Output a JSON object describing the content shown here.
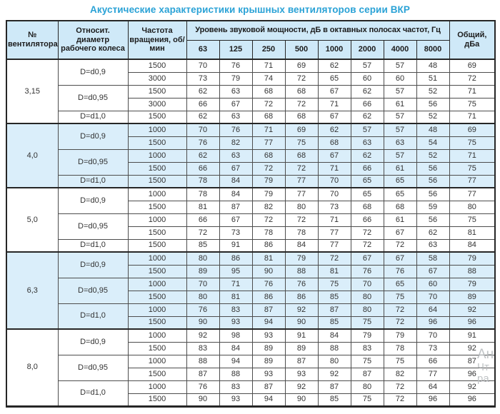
{
  "title": "Акустические характеристики крышных вентиляторов серии ВКР",
  "header": {
    "fan_no": "№ вентилятора",
    "diameter": "Относит. диаметр рабочего колеса",
    "rpm": "Частота вращения, об/мин",
    "band_label": "Уровень звуковой мощности, дБ в октавных полосах частот, Гц",
    "freq_bands": [
      "63",
      "125",
      "250",
      "500",
      "1000",
      "2000",
      "4000",
      "8000"
    ],
    "total": "Общий, дБа"
  },
  "colors": {
    "title": "#2aa2d6",
    "header_bg": "#cfe9f8",
    "band_bg": "#daeefa",
    "border": "#4d4d4d",
    "border_strong": "#262626"
  },
  "watermark": {
    "lines": [
      "Ан",
      "Чт",
      "ра"
    ]
  },
  "groups": [
    {
      "fan": "3,15",
      "shaded": false,
      "subgroups": [
        {
          "diameter": "D=d0,9",
          "rows": [
            {
              "rpm": "1500",
              "levels": [
                70,
                76,
                71,
                69,
                62,
                57,
                57,
                48
              ],
              "total": 69
            },
            {
              "rpm": "3000",
              "levels": [
                73,
                79,
                74,
                72,
                65,
                60,
                60,
                51
              ],
              "total": 72
            }
          ]
        },
        {
          "diameter": "D=d0,95",
          "rows": [
            {
              "rpm": "1500",
              "levels": [
                62,
                63,
                68,
                68,
                67,
                62,
                57,
                52
              ],
              "total": 71
            },
            {
              "rpm": "3000",
              "levels": [
                66,
                67,
                72,
                72,
                71,
                66,
                61,
                56
              ],
              "total": 75
            }
          ]
        },
        {
          "diameter": "D=d1,0",
          "rows": [
            {
              "rpm": "1500",
              "levels": [
                62,
                63,
                68,
                68,
                67,
                62,
                57,
                52
              ],
              "total": 71
            }
          ]
        }
      ]
    },
    {
      "fan": "4,0",
      "shaded": true,
      "subgroups": [
        {
          "diameter": "D=d0,9",
          "rows": [
            {
              "rpm": "1000",
              "levels": [
                70,
                76,
                71,
                69,
                62,
                57,
                57,
                48
              ],
              "total": 69
            },
            {
              "rpm": "1500",
              "levels": [
                76,
                82,
                77,
                75,
                68,
                63,
                63,
                54
              ],
              "total": 75
            }
          ]
        },
        {
          "diameter": "D=d0,95",
          "rows": [
            {
              "rpm": "1000",
              "levels": [
                62,
                63,
                68,
                68,
                67,
                62,
                57,
                52
              ],
              "total": 71
            },
            {
              "rpm": "1500",
              "levels": [
                66,
                67,
                72,
                72,
                71,
                66,
                61,
                56
              ],
              "total": 75
            }
          ]
        },
        {
          "diameter": "D=d1,0",
          "rows": [
            {
              "rpm": "1500",
              "levels": [
                78,
                84,
                79,
                77,
                70,
                65,
                65,
                56
              ],
              "total": 77
            }
          ]
        }
      ]
    },
    {
      "fan": "5,0",
      "shaded": false,
      "subgroups": [
        {
          "diameter": "D=d0,9",
          "rows": [
            {
              "rpm": "1000",
              "levels": [
                78,
                84,
                79,
                77,
                70,
                65,
                65,
                56
              ],
              "total": 77
            },
            {
              "rpm": "1500",
              "levels": [
                81,
                87,
                82,
                80,
                73,
                68,
                68,
                59
              ],
              "total": 80
            }
          ]
        },
        {
          "diameter": "D=d0,95",
          "rows": [
            {
              "rpm": "1000",
              "levels": [
                66,
                67,
                72,
                72,
                71,
                66,
                61,
                56
              ],
              "total": 75
            },
            {
              "rpm": "1500",
              "levels": [
                72,
                73,
                78,
                78,
                77,
                72,
                67,
                62
              ],
              "total": 81
            }
          ]
        },
        {
          "diameter": "D=d1,0",
          "rows": [
            {
              "rpm": "1500",
              "levels": [
                85,
                91,
                86,
                84,
                77,
                72,
                72,
                63
              ],
              "total": 84
            }
          ]
        }
      ]
    },
    {
      "fan": "6,3",
      "shaded": true,
      "subgroups": [
        {
          "diameter": "D=d0,9",
          "rows": [
            {
              "rpm": "1000",
              "levels": [
                80,
                86,
                81,
                79,
                72,
                67,
                67,
                58
              ],
              "total": 79
            },
            {
              "rpm": "1500",
              "levels": [
                89,
                95,
                90,
                88,
                81,
                76,
                76,
                67
              ],
              "total": 88
            }
          ]
        },
        {
          "diameter": "D=d0,95",
          "rows": [
            {
              "rpm": "1000",
              "levels": [
                70,
                71,
                76,
                76,
                75,
                70,
                65,
                60
              ],
              "total": 79
            },
            {
              "rpm": "1500",
              "levels": [
                80,
                81,
                86,
                86,
                85,
                80,
                75,
                70
              ],
              "total": 89
            }
          ]
        },
        {
          "diameter": "D=d1,0",
          "rows": [
            {
              "rpm": "1000",
              "levels": [
                76,
                83,
                87,
                92,
                87,
                80,
                72,
                64
              ],
              "total": 92
            },
            {
              "rpm": "1500",
              "levels": [
                90,
                93,
                94,
                90,
                85,
                75,
                72,
                96
              ],
              "total": 96
            }
          ]
        }
      ]
    },
    {
      "fan": "8,0",
      "shaded": false,
      "subgroups": [
        {
          "diameter": "D=d0,9",
          "rows": [
            {
              "rpm": "1000",
              "levels": [
                92,
                98,
                93,
                91,
                84,
                79,
                79,
                70
              ],
              "total": 91
            },
            {
              "rpm": "1500",
              "levels": [
                83,
                84,
                89,
                89,
                88,
                83,
                78,
                73
              ],
              "total": 92
            }
          ]
        },
        {
          "diameter": "D=d0,95",
          "rows": [
            {
              "rpm": "1000",
              "levels": [
                88,
                94,
                89,
                87,
                80,
                75,
                75,
                66
              ],
              "total": 87
            },
            {
              "rpm": "1500",
              "levels": [
                87,
                88,
                93,
                93,
                92,
                87,
                82,
                77
              ],
              "total": 96
            }
          ]
        },
        {
          "diameter": "D=d1,0",
          "rows": [
            {
              "rpm": "1000",
              "levels": [
                76,
                83,
                87,
                92,
                87,
                80,
                72,
                64
              ],
              "total": 92
            },
            {
              "rpm": "1500",
              "levels": [
                90,
                93,
                94,
                90,
                85,
                75,
                72,
                96
              ],
              "total": 96
            }
          ]
        }
      ]
    }
  ]
}
